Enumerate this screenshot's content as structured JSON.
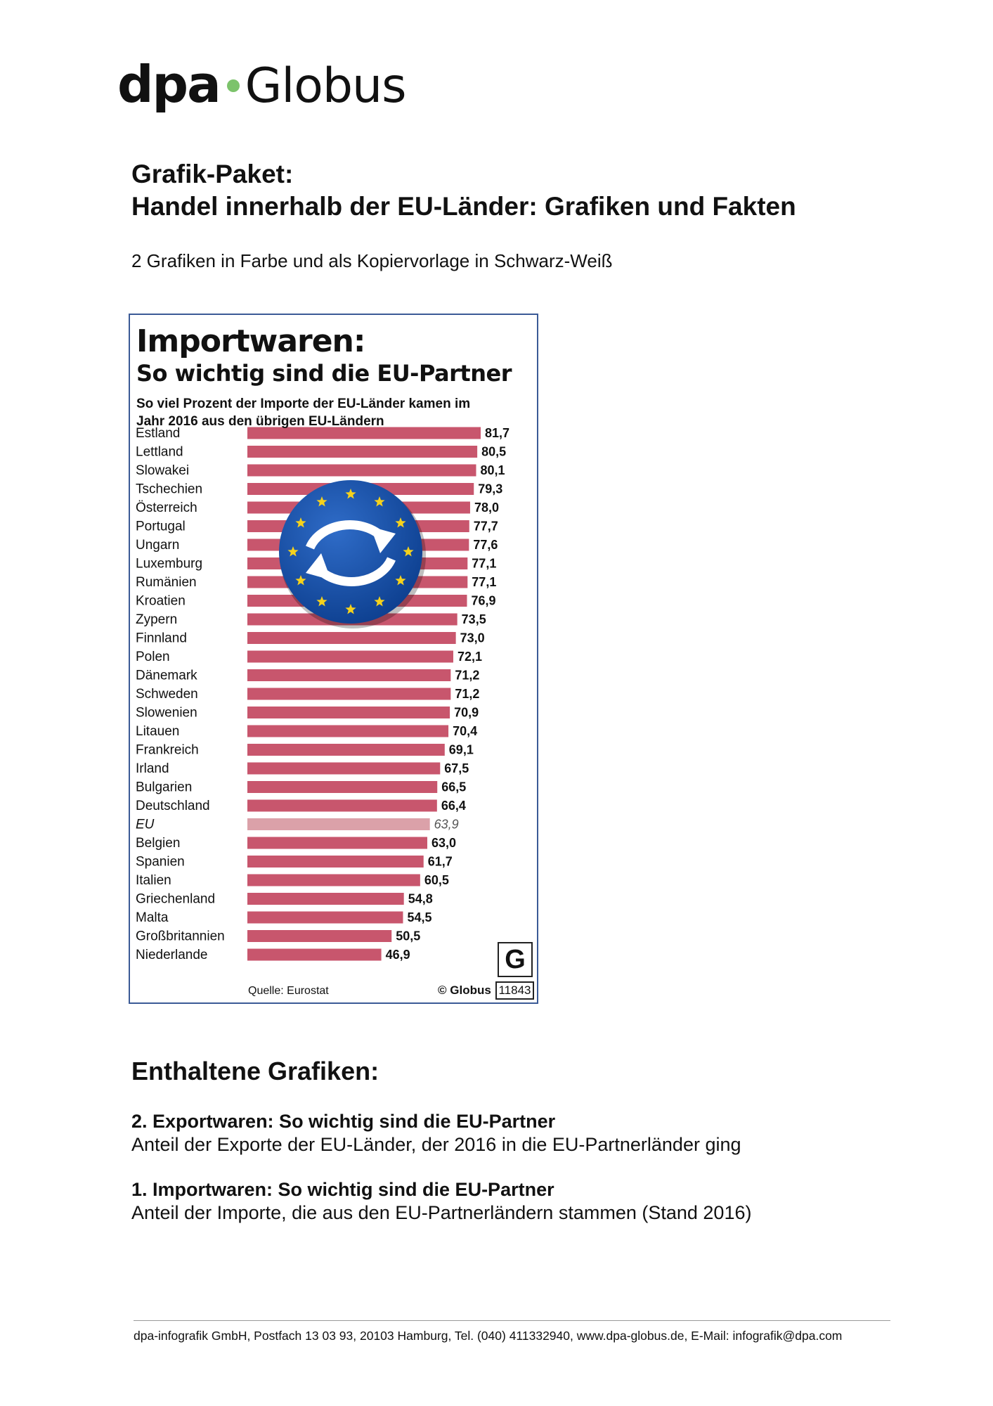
{
  "header": {
    "brand_left": "dpa",
    "brand_right": "Globus"
  },
  "package": {
    "title_line1": "Grafik-Paket:",
    "title_line2": "Handel innerhalb der EU-Länder: Grafiken und Fakten",
    "subtitle": "2 Grafiken in Farbe und als Kopiervorlage in Schwarz-Weiß"
  },
  "graphic": {
    "source": "Quelle: Eurostat",
    "copyright": "© Globus",
    "logo_letter": "G",
    "graphic_number": "11843"
  },
  "chart_data": {
    "type": "bar",
    "orientation": "horizontal",
    "title": "Importwaren:",
    "subtitle": "So wichtig sind die EU-Partner",
    "description": "So viel Prozent der Importe der EU-Länder kamen im Jahr 2016 aus den übrigen EU-Ländern",
    "categories": [
      "Estland",
      "Lettland",
      "Slowakei",
      "Tschechien",
      "Österreich",
      "Portugal",
      "Ungarn",
      "Luxemburg",
      "Rumänien",
      "Kroatien",
      "Zypern",
      "Finnland",
      "Polen",
      "Dänemark",
      "Schweden",
      "Slowenien",
      "Litauen",
      "Frankreich",
      "Irland",
      "Bulgarien",
      "Deutschland",
      "EU",
      "Belgien",
      "Spanien",
      "Italien",
      "Griechenland",
      "Malta",
      "Großbritannien",
      "Niederlande"
    ],
    "values": [
      81.7,
      80.5,
      80.1,
      79.3,
      78.0,
      77.7,
      77.6,
      77.1,
      77.1,
      76.9,
      73.5,
      73.0,
      72.1,
      71.2,
      71.2,
      70.9,
      70.4,
      69.1,
      67.5,
      66.5,
      66.4,
      63.9,
      63.0,
      61.7,
      60.5,
      54.8,
      54.5,
      50.5,
      46.9
    ],
    "labels": [
      "81,7",
      "80,5",
      "80,1",
      "79,3",
      "78,0",
      "77,7",
      "77,6",
      "77,1",
      "77,1",
      "76,9",
      "73,5",
      "73,0",
      "72,1",
      "71,2",
      "71,2",
      "70,9",
      "70,4",
      "69,1",
      "67,5",
      "66,5",
      "66,4",
      "63,9",
      "63,0",
      "61,7",
      "60,5",
      "54,8",
      "54,5",
      "50,5",
      "46,9"
    ],
    "highlight_category": "EU",
    "colors": {
      "bar": "#c8566d",
      "highlight": "#dba1a9",
      "value_text": "#111111",
      "highlight_text": "#555555"
    },
    "xlim": [
      0,
      81.7
    ],
    "grid": false,
    "legend": "none",
    "decoration": "eu-flag-circle-with-arrows"
  },
  "contents": {
    "heading": "Enthaltene Grafiken:",
    "items": [
      {
        "title": "2. Exportwaren: So wichtig sind die EU-Partner",
        "desc": "Anteil der Exporte der EU-Länder, der 2016 in die EU-Partnerländer ging"
      },
      {
        "title": "1. Importwaren: So wichtig sind die EU-Partner",
        "desc": "Anteil der Importe, die aus den EU-Partnerländern stammen (Stand 2016)"
      }
    ]
  },
  "footer": {
    "text": "dpa-infografik GmbH, Postfach 13 03 93, 20103 Hamburg, Tel. (040) 411332940, www.dpa-globus.de, E-Mail: infografik@dpa.com"
  }
}
